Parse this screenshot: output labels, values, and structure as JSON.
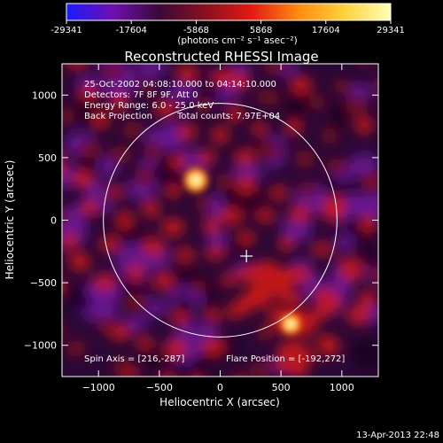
{
  "colorbar": {
    "ticks": [
      "-29341",
      "-17604",
      "-5868",
      "5868",
      "17604",
      "29341"
    ],
    "units": "(photons cm⁻² s⁻¹ asec⁻²)",
    "colors": [
      "#1a1cff",
      "#6f0fb0",
      "#3a0a3a",
      "#8a1020",
      "#e31a12",
      "#ff8a10",
      "#ffd23a",
      "#ffffb8"
    ]
  },
  "chart_data": {
    "type": "heatmap",
    "title": "Reconstructed RHESSI Image",
    "xlabel": "Heliocentric X (arcsec)",
    "ylabel": "Heliocentric Y (arcsec)",
    "xlim": [
      -1300,
      1300
    ],
    "ylim": [
      -1250,
      1250
    ],
    "xticks": [
      -1000,
      -500,
      0,
      500,
      1000
    ],
    "yticks": [
      -1000,
      -500,
      0,
      500,
      1000
    ],
    "xtick_labels": [
      "−1000",
      "−500",
      "0",
      "500",
      "1000"
    ],
    "ytick_labels": [
      "−1000",
      "−500",
      "0",
      "500",
      "1000"
    ],
    "color_range": [
      -29341,
      29341
    ],
    "solar_disk": {
      "center": [
        0,
        0
      ],
      "radius_arcsec": 960
    },
    "sources": [
      {
        "x": -200,
        "y": 320,
        "peak": 29341
      },
      {
        "x": 580,
        "y": -830,
        "peak": 25000
      }
    ],
    "crosshair": {
      "x": 216,
      "y": -287
    },
    "annotations": [
      "25-Oct-2002 04:08:10.000 to 04:14:10.000",
      "Detectors: 7F 8F 9F, Att 0",
      "Energy Range: 6.0 - 25.0 keV",
      "Back Projection",
      "Total counts: 7.97E+04",
      "Spin Axis = [216,-287]",
      "Flare Position = [-192,272]"
    ]
  },
  "timestamp": "13-Apr-2013 22:48"
}
